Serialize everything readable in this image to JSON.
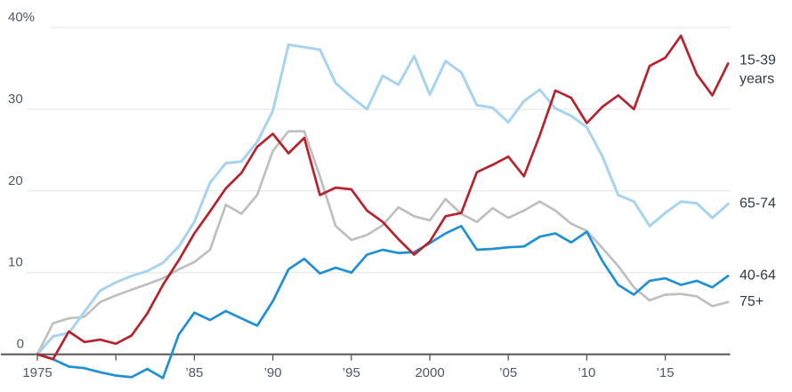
{
  "chart_data": {
    "type": "line",
    "title": "",
    "xlabel": "",
    "ylabel": "",
    "unit": "%",
    "grid": true,
    "legend_position": "right-edge-labels",
    "ylim": [
      -3.5,
      40
    ],
    "x": [
      1975,
      1976,
      1977,
      1978,
      1979,
      1980,
      1981,
      1982,
      1983,
      1984,
      1985,
      1986,
      1987,
      1988,
      1989,
      1990,
      1991,
      1992,
      1993,
      1994,
      1995,
      1996,
      1997,
      1998,
      1999,
      2000,
      2001,
      2002,
      2003,
      2004,
      2005,
      2006,
      2007,
      2008,
      2009,
      2010,
      2011,
      2012,
      2013,
      2014,
      2015,
      2016,
      2017,
      2018,
      2019
    ],
    "y_axis": {
      "ticks": [
        {
          "value": 40,
          "label": "40%",
          "grid": true
        },
        {
          "value": 30,
          "label": "30",
          "grid": true
        },
        {
          "value": 20,
          "label": "20",
          "grid": true
        },
        {
          "value": 10,
          "label": "10",
          "grid": true
        },
        {
          "value": 0,
          "label": "0",
          "grid": false
        }
      ]
    },
    "x_axis": {
      "tick_years": [
        1975,
        1980,
        1985,
        1990,
        1995,
        2000,
        2005,
        2010,
        2015
      ],
      "labels": [
        {
          "year": 1975,
          "text": "1975"
        },
        {
          "year": 1985,
          "text": "’85"
        },
        {
          "year": 1990,
          "text": "’90"
        },
        {
          "year": 1995,
          "text": "’95"
        },
        {
          "year": 2000,
          "text": "2000"
        },
        {
          "year": 2005,
          "text": "’05"
        },
        {
          "year": 2010,
          "text": "’10"
        },
        {
          "year": 2015,
          "text": "’15"
        }
      ]
    },
    "series": [
      {
        "name": "15-39 years",
        "label_lines": [
          "15-39",
          "years"
        ],
        "color": "#b4232e",
        "values": [
          0,
          -0.6,
          2.8,
          1.5,
          1.8,
          1.3,
          2.3,
          5.0,
          8.5,
          11.5,
          14.8,
          17.5,
          20.3,
          22.2,
          25.4,
          27.0,
          24.6,
          26.5,
          19.5,
          20.4,
          20.2,
          17.6,
          16.2,
          14.1,
          12.2,
          13.8,
          16.9,
          17.3,
          22.3,
          23.2,
          24.2,
          21.8,
          26.8,
          32.3,
          31.4,
          28.3,
          30.3,
          31.7,
          30.0,
          35.3,
          36.3,
          39.0,
          34.3,
          31.7,
          35.6
        ]
      },
      {
        "name": "65-74",
        "label_lines": [
          "65-74"
        ],
        "color": "#a7d3f0",
        "values": [
          0,
          2.2,
          2.6,
          5.2,
          7.8,
          8.8,
          9.6,
          10.2,
          11.2,
          13.2,
          16.2,
          21.0,
          23.4,
          23.6,
          26.0,
          29.8,
          37.9,
          37.6,
          37.3,
          33.2,
          31.5,
          30.0,
          34.1,
          33.0,
          36.5,
          31.8,
          35.9,
          34.5,
          30.5,
          30.2,
          28.4,
          31.0,
          32.4,
          30.1,
          29.2,
          27.8,
          24.2,
          19.5,
          18.7,
          15.7,
          17.3,
          18.7,
          18.5,
          16.7,
          18.4
        ]
      },
      {
        "name": "40-64",
        "label_lines": [
          "40-64"
        ],
        "color": "#1f90d4",
        "values": [
          0,
          -0.6,
          -1.5,
          -1.7,
          -2.2,
          -2.6,
          -2.8,
          -1.8,
          -2.9,
          2.4,
          5.1,
          4.2,
          5.3,
          4.4,
          3.5,
          6.5,
          10.4,
          11.7,
          9.9,
          10.6,
          10.0,
          12.2,
          12.8,
          12.4,
          12.5,
          13.6,
          14.8,
          15.7,
          12.8,
          12.9,
          13.1,
          13.2,
          14.4,
          14.8,
          13.7,
          15.0,
          11.4,
          8.5,
          7.3,
          9.0,
          9.3,
          8.5,
          9.0,
          8.2,
          9.6
        ]
      },
      {
        "name": "75+",
        "label_lines": [
          "75+"
        ],
        "color": "#bfbfbf",
        "values": [
          0,
          3.8,
          4.4,
          4.6,
          6.4,
          7.2,
          7.9,
          8.6,
          9.3,
          10.4,
          11.3,
          12.8,
          18.3,
          17.2,
          19.5,
          24.9,
          27.3,
          27.3,
          21.8,
          15.7,
          14.0,
          14.6,
          15.8,
          18.0,
          16.9,
          16.4,
          19.0,
          17.2,
          16.2,
          17.9,
          16.7,
          17.6,
          18.7,
          17.6,
          16.0,
          15.1,
          13.0,
          10.8,
          8.2,
          6.6,
          7.3,
          7.4,
          7.1,
          5.9,
          6.4
        ]
      }
    ],
    "colors": {
      "grid": "#e3e3e3",
      "axis": "#525456",
      "tick_label": "#4e5a63",
      "series_label": "#313b45"
    }
  }
}
